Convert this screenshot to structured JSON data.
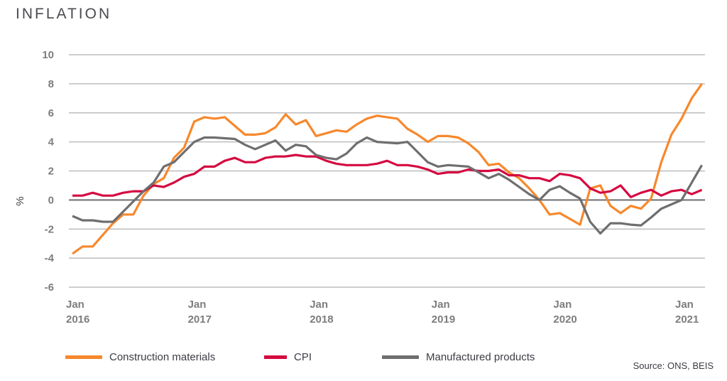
{
  "chart_data": {
    "type": "line",
    "title": "INFLATION",
    "ylabel": "%",
    "xlabel": "",
    "ylim": [
      -6,
      10
    ],
    "yticks": [
      -6,
      -4,
      -2,
      0,
      2,
      4,
      6,
      8,
      10
    ],
    "grid": true,
    "legend": "bottom",
    "x_start": "Jan 2016",
    "x_end": "Mar 2021",
    "x_frequency": "monthly",
    "xtick_labels": [
      [
        "Jan",
        "2016"
      ],
      [
        "Jan",
        "2017"
      ],
      [
        "Jan",
        "2018"
      ],
      [
        "Jan",
        "2019"
      ],
      [
        "Jan",
        "2020"
      ],
      [
        "Jan",
        "2021"
      ]
    ],
    "series": [
      {
        "name": "Construction materials",
        "color": "#f7882c",
        "values": [
          -3.7,
          -3.2,
          -3.2,
          -2.4,
          -1.6,
          -1.0,
          -1.0,
          0.3,
          1.1,
          1.5,
          2.9,
          3.6,
          5.4,
          5.7,
          5.6,
          5.7,
          5.1,
          4.5,
          4.5,
          4.6,
          5.0,
          5.9,
          5.2,
          5.5,
          4.4,
          4.6,
          4.8,
          4.7,
          5.2,
          5.6,
          5.8,
          5.7,
          5.6,
          4.9,
          4.5,
          4.0,
          4.4,
          4.4,
          4.3,
          3.9,
          3.3,
          2.4,
          2.5,
          1.9,
          1.5,
          0.8,
          0.0,
          -1.0,
          -0.9,
          -1.3,
          -1.7,
          0.8,
          1.0,
          -0.4,
          -0.9,
          -0.4,
          -0.6,
          0.1,
          2.6,
          4.5,
          5.6,
          7.0,
          8.0
        ]
      },
      {
        "name": "CPI",
        "color": "#d40a40",
        "values": [
          0.3,
          0.3,
          0.5,
          0.3,
          0.3,
          0.5,
          0.6,
          0.6,
          1.0,
          0.9,
          1.2,
          1.6,
          1.8,
          2.3,
          2.3,
          2.7,
          2.9,
          2.6,
          2.6,
          2.9,
          3.0,
          3.0,
          3.1,
          3.0,
          3.0,
          2.7,
          2.5,
          2.4,
          2.4,
          2.4,
          2.5,
          2.7,
          2.4,
          2.4,
          2.3,
          2.1,
          1.8,
          1.9,
          1.9,
          2.1,
          2.0,
          2.0,
          2.1,
          1.7,
          1.7,
          1.5,
          1.5,
          1.3,
          1.8,
          1.7,
          1.5,
          0.8,
          0.5,
          0.6,
          1.0,
          0.2,
          0.5,
          0.7,
          0.3,
          0.6,
          0.7,
          0.4,
          0.7
        ]
      },
      {
        "name": "Manufactured products",
        "color": "#6e6e70",
        "values": [
          -1.1,
          -1.4,
          -1.4,
          -1.5,
          -1.5,
          -0.8,
          -0.1,
          0.6,
          1.2,
          2.3,
          2.6,
          3.3,
          4.0,
          4.3,
          4.3,
          4.25,
          4.2,
          3.8,
          3.5,
          3.8,
          4.1,
          3.4,
          3.8,
          3.7,
          3.1,
          2.9,
          2.8,
          3.2,
          3.9,
          4.3,
          4.0,
          3.95,
          3.9,
          4.0,
          3.3,
          2.6,
          2.3,
          2.4,
          2.35,
          2.3,
          1.9,
          1.5,
          1.8,
          1.4,
          0.9,
          0.4,
          0.0,
          0.7,
          0.95,
          0.5,
          0.1,
          -1.5,
          -2.3,
          -1.6,
          -1.6,
          -1.7,
          -1.75,
          -1.2,
          -0.6,
          -0.3,
          0.0,
          1.2,
          2.4
        ]
      }
    ]
  },
  "source": "Source: ONS, BEIS"
}
